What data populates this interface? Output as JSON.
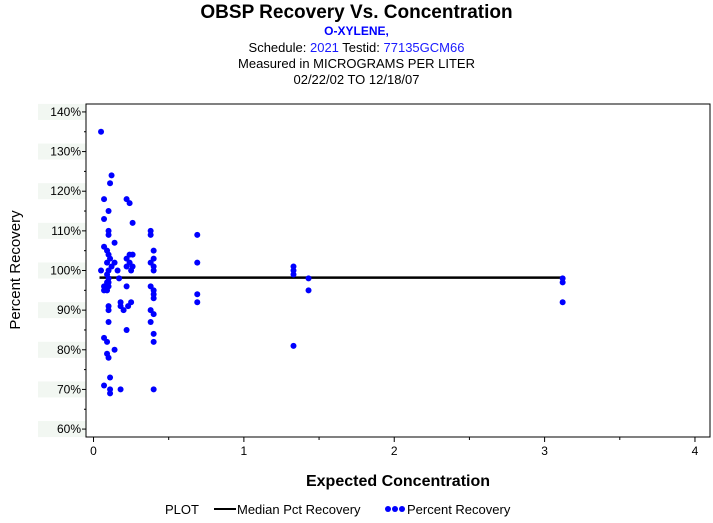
{
  "header": {
    "title": "OBSP Recovery Vs. Concentration",
    "analyte": "O-XYLENE,",
    "schedule_label": "Schedule:",
    "schedule_value": "2021",
    "testid_label": "Testid:",
    "testid_value": "77135GCM66",
    "measured": "Measured in  MICROGRAMS PER LITER",
    "dates": "02/22/02 TO 12/18/07"
  },
  "chart_data": {
    "type": "scatter",
    "title": "OBSP Recovery Vs. Concentration",
    "xlabel": "Expected Concentration",
    "ylabel": "Percent Recovery",
    "xlim": [
      -0.05,
      4.1
    ],
    "ylim": [
      58,
      142
    ],
    "x_ticks": [
      0,
      1,
      2,
      3,
      4
    ],
    "x_tick_labels": [
      "0",
      "1",
      "2",
      "3",
      "4"
    ],
    "y_ticks": [
      60,
      70,
      80,
      90,
      100,
      110,
      120,
      130,
      140
    ],
    "y_tick_labels": [
      "60%",
      "70%",
      "80%",
      "90%",
      "100%",
      "110%",
      "120%",
      "130%",
      "140%"
    ],
    "colors": {
      "points": "#0000ff",
      "median": "#000000"
    },
    "series": [
      {
        "name": "Median Pct Recovery",
        "kind": "line",
        "x": [
          0.04,
          3.12
        ],
        "y": [
          98.2,
          98.2
        ]
      },
      {
        "name": "Percent Recovery",
        "kind": "points",
        "points": [
          [
            0.05,
            135
          ],
          [
            0.05,
            100
          ],
          [
            0.07,
            118
          ],
          [
            0.07,
            113
          ],
          [
            0.07,
            106
          ],
          [
            0.07,
            96
          ],
          [
            0.07,
            95
          ],
          [
            0.07,
            83
          ],
          [
            0.07,
            71
          ],
          [
            0.09,
            105
          ],
          [
            0.09,
            102
          ],
          [
            0.09,
            99
          ],
          [
            0.09,
            97
          ],
          [
            0.09,
            95
          ],
          [
            0.09,
            82
          ],
          [
            0.09,
            79
          ],
          [
            0.1,
            115
          ],
          [
            0.1,
            110
          ],
          [
            0.1,
            109
          ],
          [
            0.1,
            104
          ],
          [
            0.1,
            100
          ],
          [
            0.1,
            98
          ],
          [
            0.1,
            97
          ],
          [
            0.1,
            96
          ],
          [
            0.1,
            91
          ],
          [
            0.1,
            90
          ],
          [
            0.1,
            87
          ],
          [
            0.1,
            78
          ],
          [
            0.11,
            122
          ],
          [
            0.11,
            103
          ],
          [
            0.11,
            73
          ],
          [
            0.11,
            70
          ],
          [
            0.11,
            69
          ],
          [
            0.12,
            124
          ],
          [
            0.12,
            101
          ],
          [
            0.14,
            107
          ],
          [
            0.14,
            102
          ],
          [
            0.14,
            80
          ],
          [
            0.16,
            100
          ],
          [
            0.17,
            98
          ],
          [
            0.18,
            92
          ],
          [
            0.18,
            91
          ],
          [
            0.18,
            70
          ],
          [
            0.2,
            90
          ],
          [
            0.22,
            118
          ],
          [
            0.22,
            103
          ],
          [
            0.22,
            101
          ],
          [
            0.22,
            96
          ],
          [
            0.22,
            85
          ],
          [
            0.23,
            91
          ],
          [
            0.24,
            117
          ],
          [
            0.24,
            104
          ],
          [
            0.24,
            102
          ],
          [
            0.25,
            100
          ],
          [
            0.25,
            92
          ],
          [
            0.26,
            112
          ],
          [
            0.26,
            104
          ],
          [
            0.26,
            101
          ],
          [
            0.38,
            110
          ],
          [
            0.38,
            109
          ],
          [
            0.38,
            102
          ],
          [
            0.38,
            96
          ],
          [
            0.38,
            90
          ],
          [
            0.38,
            87
          ],
          [
            0.4,
            105
          ],
          [
            0.4,
            103
          ],
          [
            0.4,
            101
          ],
          [
            0.4,
            100
          ],
          [
            0.4,
            95
          ],
          [
            0.4,
            94
          ],
          [
            0.4,
            93
          ],
          [
            0.4,
            89
          ],
          [
            0.4,
            84
          ],
          [
            0.4,
            82
          ],
          [
            0.4,
            70
          ],
          [
            0.69,
            109
          ],
          [
            0.69,
            102
          ],
          [
            0.69,
            94
          ],
          [
            0.69,
            92
          ],
          [
            1.33,
            101
          ],
          [
            1.33,
            100
          ],
          [
            1.33,
            99
          ],
          [
            1.33,
            81
          ],
          [
            1.43,
            98
          ],
          [
            1.43,
            95
          ],
          [
            3.12,
            98
          ],
          [
            3.12,
            97
          ],
          [
            3.12,
            92
          ]
        ]
      }
    ],
    "legend": {
      "title": "PLOT",
      "entries": [
        "Median Pct Recovery",
        "Percent Recovery"
      ],
      "placement": "bottom"
    }
  }
}
